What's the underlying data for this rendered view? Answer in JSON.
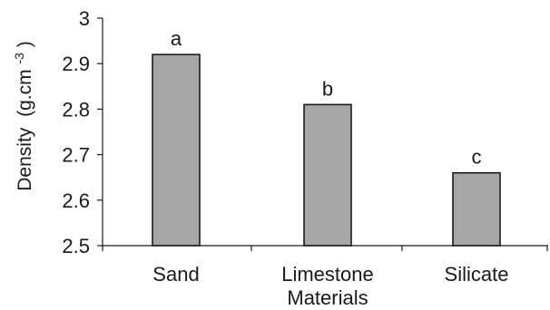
{
  "chart_data": {
    "type": "bar",
    "title": "",
    "xlabel": "",
    "ylabel": "Density",
    "ylabel_unit_prefix": "(g.cm",
    "ylabel_unit_exponent": "-3",
    "ylabel_unit_suffix": ")",
    "ylim": [
      2.5,
      3.0
    ],
    "yticks": [
      2.5,
      2.6,
      2.7,
      2.8,
      2.9,
      3.0
    ],
    "ytick_labels": [
      "2.5",
      "2.6",
      "2.7",
      "2.8",
      "2.9",
      "3"
    ],
    "categories": [
      [
        "Sand"
      ],
      [
        "Limestone",
        "Materials"
      ],
      [
        "Silicate"
      ]
    ],
    "values": [
      2.92,
      2.81,
      2.66
    ],
    "data_labels": [
      "a",
      "b",
      "c"
    ],
    "bar_color": "#a6a6a6",
    "bar_edge_color": "#1a1a1a",
    "grid": false,
    "legend": "none"
  }
}
